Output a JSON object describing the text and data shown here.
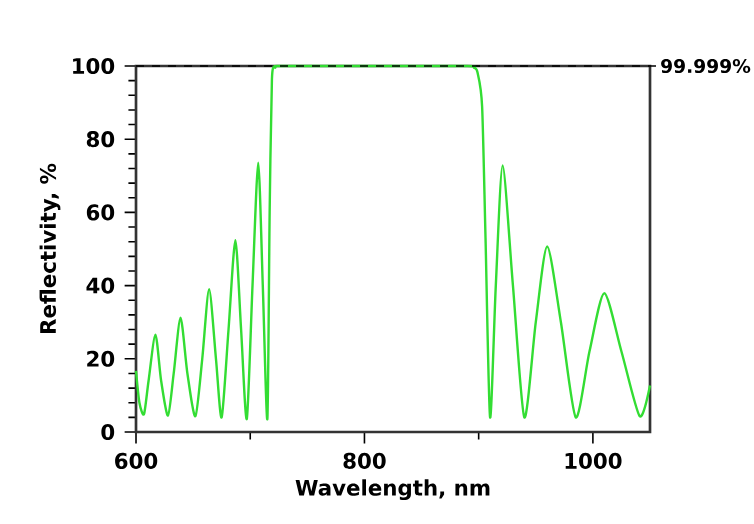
{
  "chart_data": {
    "type": "line",
    "xlabel": "Wavelength, nm",
    "ylabel": "Reflectivity, %",
    "xlim": [
      600,
      1050
    ],
    "ylim": [
      0,
      100
    ],
    "xticks": [
      600,
      800,
      1000
    ],
    "yticks": [
      0,
      20,
      40,
      60,
      80,
      100
    ],
    "grid": false,
    "marker": "none",
    "line_style": "solid",
    "ref_lines": [
      {
        "axis": "y",
        "value": 99.999,
        "label": "99.999%",
        "color": "#000000",
        "line_style": "dashed"
      }
    ],
    "series": [
      {
        "color": "#33dd33",
        "x": [
          600,
          603,
          607,
          611,
          617,
          622,
          628,
          633,
          639,
          645,
          652,
          658,
          664,
          670,
          675,
          681,
          687,
          692,
          697,
          702,
          707,
          711,
          715,
          717,
          719,
          722,
          727,
          800,
          890,
          896,
          899,
          903,
          906,
          910,
          915,
          921,
          930,
          940,
          950,
          960,
          972,
          985,
          997,
          1010,
          1025,
          1041,
          1050
        ],
        "values": [
          16.7,
          8,
          4.9,
          14,
          26.6,
          14,
          4.5,
          16,
          31.2,
          16,
          4.3,
          20,
          39,
          20,
          4,
          28,
          52.4,
          28,
          3.6,
          40,
          73.6,
          40,
          3.6,
          60,
          96.4,
          99.6,
          100,
          100,
          100,
          99.5,
          98.2,
          89,
          53,
          4,
          40,
          72.8,
          40,
          4,
          30,
          50.7,
          30,
          4,
          22,
          37.9,
          22,
          4.3,
          12.7
        ]
      }
    ]
  }
}
